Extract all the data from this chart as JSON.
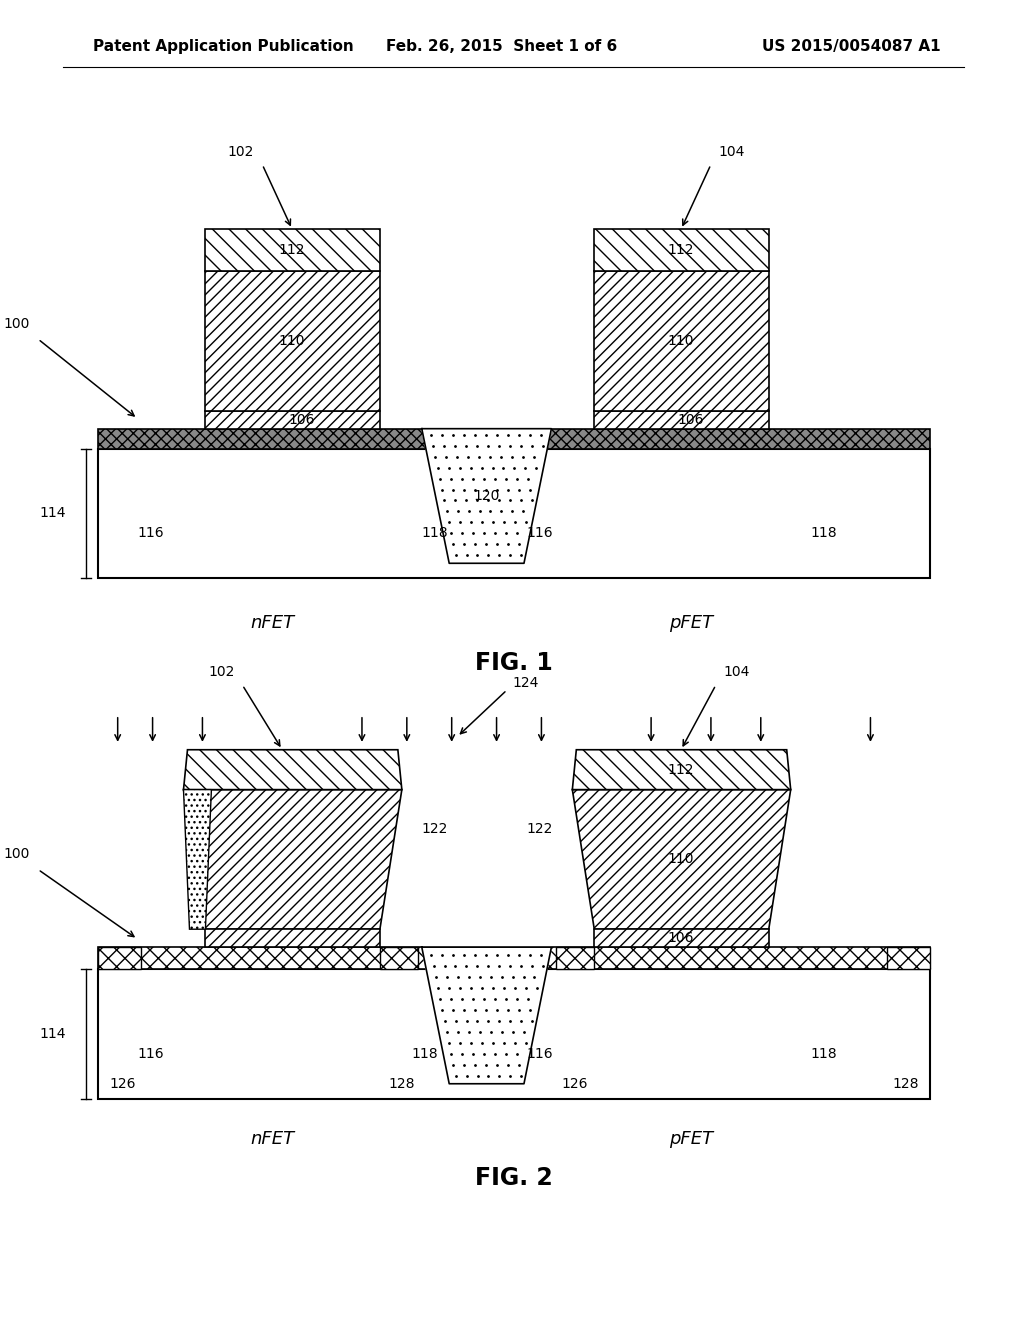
{
  "header_left": "Patent Application Publication",
  "header_center": "Feb. 26, 2015  Sheet 1 of 6",
  "header_right": "US 2015/0054087 A1",
  "fig1_caption": "FIG. 1",
  "fig2_caption": "FIG. 2",
  "bg_color": "#ffffff",
  "line_color": "#000000"
}
